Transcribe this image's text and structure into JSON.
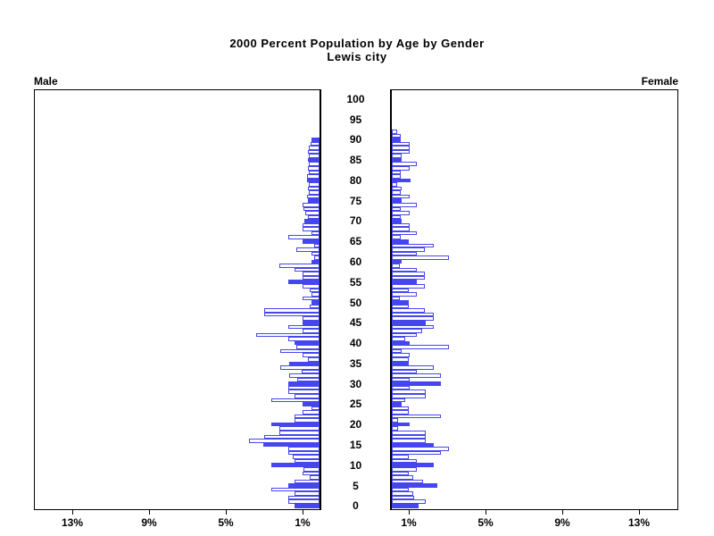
{
  "page": {
    "title_line1": "2000 Percent Population by Age by Gender",
    "title_line2": "Lewis city",
    "male_label": "Male",
    "female_label": "Female"
  },
  "chart_data": {
    "type": "bar",
    "subtype": "population-pyramid",
    "title": "2000 Percent Population by Age by Gender",
    "subtitle": "Lewis city",
    "unit": "percent of population",
    "xlim_each_side": [
      0,
      15
    ],
    "x_tick_values": [
      1,
      5,
      9,
      13
    ],
    "x_tick_labels_male": [
      "13%",
      "9%",
      "5%",
      "1%"
    ],
    "x_tick_labels_female": [
      "1%",
      "5%",
      "9%",
      "13%"
    ],
    "age_tick_values": [
      0,
      5,
      10,
      15,
      20,
      25,
      30,
      35,
      40,
      45,
      50,
      55,
      60,
      65,
      70,
      75,
      80,
      85,
      90,
      95,
      100
    ],
    "age_axis_range": [
      0,
      100
    ],
    "bar_width_years": 1,
    "filled_bar_rule": "ages that are multiples of 5 are solid filled; other ages are hollow outlines",
    "legend": "none",
    "grid": "off",
    "colors": {
      "bar": "#4646ee",
      "hollow_fill": "#ffffff",
      "axis": "#000000"
    },
    "series": [
      {
        "name": "Male",
        "side": "left",
        "ages_start_at": 0,
        "values_pct": [
          1.3,
          1.65,
          1.65,
          1.3,
          2.5,
          1.65,
          1.3,
          0.5,
          0.9,
          0.85,
          2.5,
          1.3,
          1.4,
          1.65,
          1.65,
          2.95,
          3.7,
          2.9,
          2.1,
          2.1,
          2.5,
          1.3,
          1.3,
          0.9,
          0.4,
          0.9,
          2.5,
          1.3,
          1.65,
          1.65,
          1.65,
          1.15,
          1.6,
          0.95,
          2.05,
          1.6,
          0.6,
          0.9,
          2.05,
          1.2,
          1.3,
          1.65,
          3.3,
          0.9,
          1.65,
          0.9,
          0.9,
          2.9,
          2.9,
          0.5,
          0.4,
          0.9,
          0.4,
          0.5,
          0.9,
          1.65,
          0.9,
          0.9,
          1.3,
          2.1,
          0.4,
          0.3,
          0.4,
          1.2,
          0.3,
          0.9,
          1.65,
          0.4,
          0.9,
          0.9,
          0.8,
          0.6,
          0.76,
          0.82,
          0.88,
          0.6,
          0.63,
          0.54,
          0.59,
          0.54,
          0.65,
          0.65,
          0.58,
          0.59,
          0.54,
          0.61,
          0.58,
          0.59,
          0.58,
          0.47,
          0.4
        ]
      },
      {
        "name": "Female",
        "side": "right",
        "ages_start_at": 0,
        "values_pct": [
          1.4,
          1.75,
          1.16,
          1.1,
          0.88,
          2.37,
          1.63,
          1.1,
          0.88,
          1.32,
          2.17,
          1.32,
          0.88,
          2.56,
          2.98,
          2.17,
          1.75,
          1.75,
          1.75,
          0.31,
          0.93,
          0.31,
          2.56,
          0.88,
          0.88,
          0.5,
          0.7,
          1.75,
          1.75,
          0.93,
          2.56,
          0.93,
          2.56,
          1.32,
          2.17,
          0.88,
          0.88,
          0.93,
          0.51,
          2.98,
          0.93,
          0.7,
          1.32,
          1.6,
          2.17,
          1.75,
          2.2,
          2.17,
          1.74,
          0.9,
          0.88,
          0.4,
          1.3,
          0.88,
          1.74,
          1.32,
          1.74,
          1.74,
          1.3,
          0.4,
          0.51,
          2.98,
          1.32,
          1.74,
          2.17,
          0.88,
          0.47,
          1.32,
          0.93,
          0.93,
          0.5,
          0.47,
          0.93,
          0.47,
          1.32,
          0.5,
          0.93,
          0.47,
          0.5,
          0.3,
          1.0,
          0.47,
          0.47,
          0.93,
          1.32,
          0.5,
          0.5,
          0.93,
          0.93,
          0.93,
          0.47,
          0.47,
          0.3
        ]
      }
    ]
  }
}
